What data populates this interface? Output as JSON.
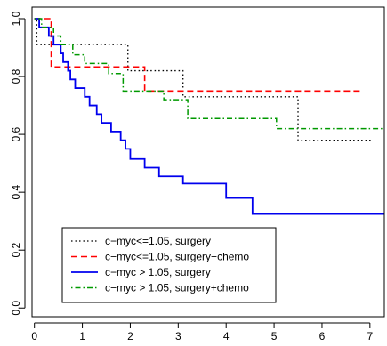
{
  "chart_data": {
    "type": "line",
    "chart_style": "step",
    "title": "",
    "xlabel": "",
    "ylabel": "",
    "xlim": [
      -0.05,
      7.3
    ],
    "ylim": [
      -0.03,
      1.04
    ],
    "x_ticks": [
      0,
      1,
      2,
      3,
      4,
      5,
      6,
      7
    ],
    "x_tick_labels": [
      "0",
      "1",
      "2",
      "3",
      "4",
      "5",
      "6",
      "7"
    ],
    "y_ticks": [
      0.0,
      0.2,
      0.4,
      0.6,
      0.8,
      1.0
    ],
    "y_tick_labels": [
      "0.0",
      "0.2",
      "0.4",
      "0.6",
      "0.8",
      "1.0"
    ],
    "grid": false,
    "legend_position": "bottom-left",
    "series": [
      {
        "name": "c−myc<=1.05, surgery",
        "color": "#000000",
        "line_style": "dotted",
        "x": [
          0,
          0.05,
          1.55,
          1.95,
          2.3,
          3.1,
          5.5,
          7.05
        ],
        "y": [
          1.0,
          0.91,
          0.91,
          0.82,
          0.82,
          0.73,
          0.58,
          0.58
        ]
      },
      {
        "name": "c−myc<=1.05, surgery+chemo",
        "color": "#ff0000",
        "line_style": "dashed",
        "x": [
          0,
          0.35,
          1.35,
          2.3,
          6.8
        ],
        "y": [
          1.0,
          0.833,
          0.833,
          0.75,
          0.75
        ]
      },
      {
        "name": "c−myc > 1.05, surgery",
        "color": "#0000ee",
        "line_style": "solid",
        "x": [
          0,
          0.1,
          0.3,
          0.4,
          0.55,
          0.6,
          0.7,
          0.75,
          0.85,
          1.05,
          1.15,
          1.3,
          1.4,
          1.6,
          1.8,
          1.9,
          2.0,
          2.3,
          2.6,
          3.1,
          4.0,
          4.55,
          7.3
        ],
        "y": [
          1.0,
          0.97,
          0.94,
          0.91,
          0.88,
          0.85,
          0.82,
          0.79,
          0.76,
          0.73,
          0.7,
          0.67,
          0.64,
          0.61,
          0.58,
          0.55,
          0.515,
          0.485,
          0.455,
          0.43,
          0.38,
          0.325,
          0.325
        ]
      },
      {
        "name": "c−myc > 1.05, surgery+chemo",
        "color": "#009900",
        "line_style": "dotdash",
        "x": [
          0,
          0.15,
          0.4,
          0.55,
          0.8,
          1.05,
          1.55,
          1.85,
          2.7,
          3.2,
          4.4,
          5.05,
          7.3
        ],
        "y": [
          1.0,
          0.97,
          0.94,
          0.91,
          0.875,
          0.845,
          0.81,
          0.75,
          0.72,
          0.655,
          0.655,
          0.62,
          0.62
        ]
      }
    ]
  }
}
